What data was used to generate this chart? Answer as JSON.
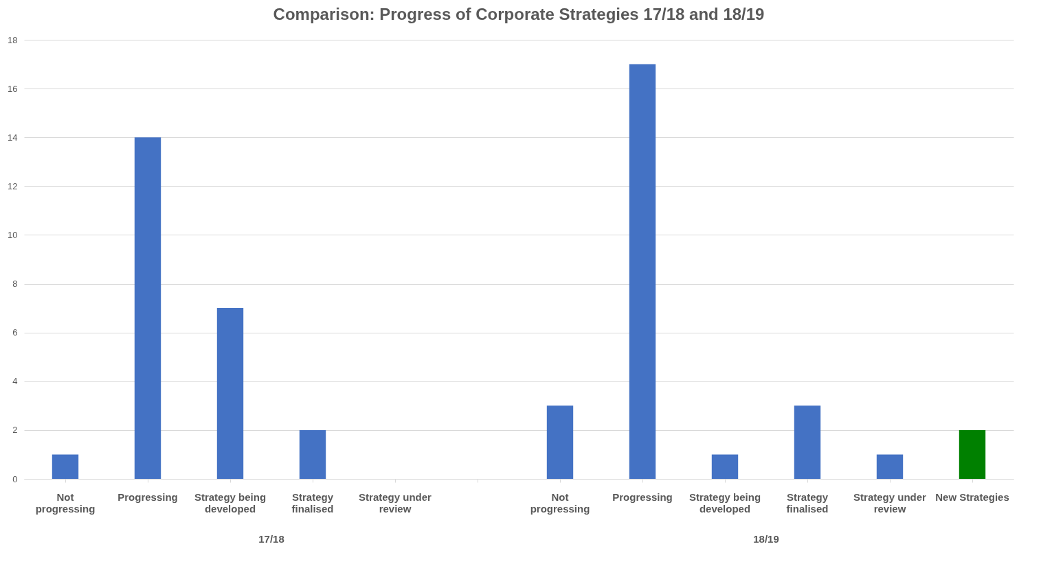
{
  "chart_data": {
    "type": "bar",
    "title": "Comparison: Progress of Corporate Strategies 17/18 and 18/19",
    "categories": [
      "Not progressing",
      "Progressing",
      "Strategy being developed",
      "Strategy finalised",
      "Strategy under review",
      null,
      "Not progressing",
      "Progressing",
      "Strategy being developed",
      "Strategy finalised",
      "Strategy under review",
      "New Strategies"
    ],
    "values": [
      1,
      14,
      7,
      2,
      0,
      null,
      3,
      17,
      1,
      3,
      1,
      2
    ],
    "colors": [
      "#4472c4",
      "#4472c4",
      "#4472c4",
      "#4472c4",
      "#4472c4",
      "#4472c4",
      "#4472c4",
      "#4472c4",
      "#4472c4",
      "#4472c4",
      "#4472c4",
      "#008000"
    ],
    "annotations": [
      "17/18",
      "18/19"
    ],
    "ylim": [
      0,
      18
    ],
    "yticks": [
      0,
      2,
      4,
      6,
      8,
      10,
      12,
      14,
      16,
      18
    ],
    "grid": "y"
  }
}
